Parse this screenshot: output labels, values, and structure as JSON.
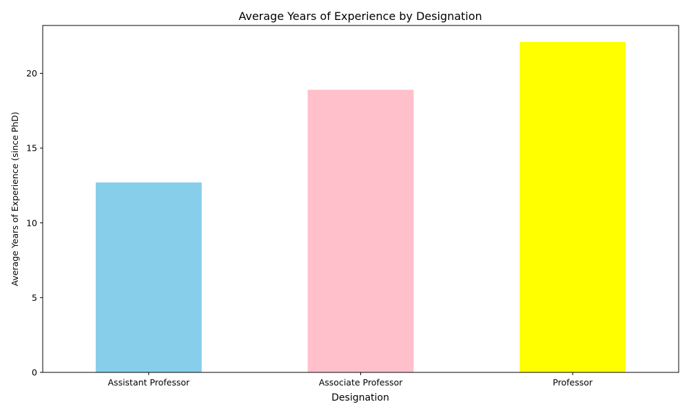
{
  "chart_data": {
    "type": "bar",
    "title": "Average Years of Experience by Designation",
    "xlabel": "Designation",
    "ylabel": "Average Years of Experience (since PhD)",
    "categories": [
      "Assistant Professor",
      "Associate Professor",
      "Professor"
    ],
    "values": [
      12.7,
      18.9,
      22.1
    ],
    "colors": [
      "#87CEEB",
      "#FFC0CB",
      "#FFFF00"
    ],
    "ylim": [
      0,
      23.2
    ],
    "yticks": [
      0,
      5,
      10,
      15,
      20
    ],
    "grid": false,
    "legend": "none"
  }
}
